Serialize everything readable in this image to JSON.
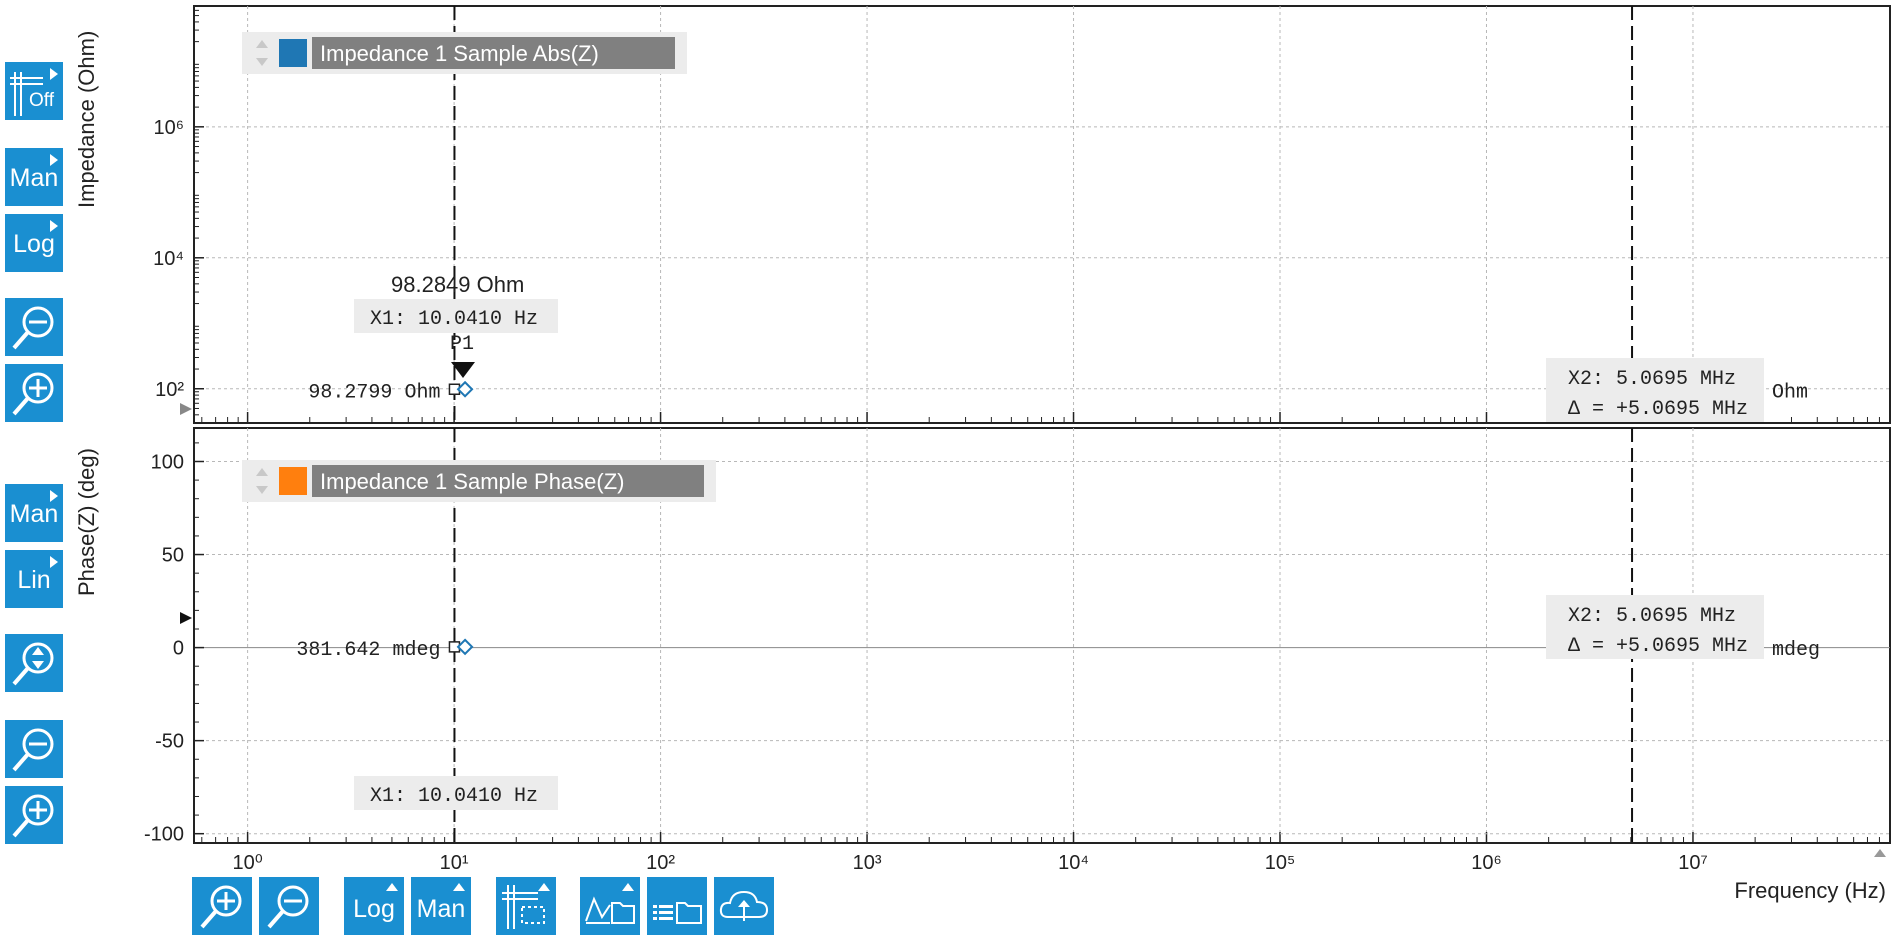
{
  "chart_data": [
    {
      "type": "line",
      "title": "",
      "ylabel": "Impedance (Ohm)",
      "yscale": "log",
      "ylim": [
        30,
        70000000
      ],
      "yticks": [
        {
          "v": 100,
          "label": "10²"
        },
        {
          "v": 10000,
          "label": "10⁴"
        },
        {
          "v": 1000000,
          "label": "10⁶"
        }
      ],
      "legend": {
        "name": "Impedance 1 Sample Abs(Z)",
        "color": "#1f77b4",
        "placement": "top-left"
      },
      "series": [
        {
          "name": "Impedance 1 Sample Abs(Z)",
          "x": [
            10.041,
            11.3
          ],
          "y": [
            98.2799,
            98.2849
          ]
        }
      ],
      "cursor_readout_left": "98.2799 Ohm",
      "cursor_readout_right": "Ohm",
      "marker_value": "98.2849 Ohm",
      "marker_name": "P1",
      "x1_label": "X1: 10.0410 Hz",
      "x2_label": "X2: 5.0695 MHz",
      "delta_label": "Δ = +5.0695 MHz"
    },
    {
      "type": "line",
      "title": "",
      "ylabel": "Phase(Z) (deg)",
      "yscale": "linear",
      "ylim": [
        -105,
        118
      ],
      "yticks": [
        {
          "v": 100,
          "label": "100"
        },
        {
          "v": 50,
          "label": "50"
        },
        {
          "v": 0,
          "label": "0"
        },
        {
          "v": -50,
          "label": "-50"
        },
        {
          "v": -100,
          "label": "-100"
        }
      ],
      "legend": {
        "name": "Impedance 1 Sample Phase(Z)",
        "color": "#ff7f0e",
        "placement": "top-left"
      },
      "series": [
        {
          "name": "Impedance 1 Sample Phase(Z)",
          "x": [
            10.041,
            11.3
          ],
          "y": [
            0.381642,
            0.381642
          ]
        }
      ],
      "cursor_readout_left": "381.642 mdeg",
      "cursor_readout_right": "mdeg",
      "x1_label": "X1: 10.0410 Hz",
      "x2_label": "X2: 5.0695 MHz",
      "delta_label": "Δ = +5.0695 MHz"
    }
  ],
  "x_axis": {
    "label": "Frequency (Hz)",
    "scale": "log",
    "xlim": [
      0.55,
      90000000
    ],
    "ticks": [
      {
        "v": 1,
        "label": "10⁰"
      },
      {
        "v": 10,
        "label": "10¹"
      },
      {
        "v": 100,
        "label": "10²"
      },
      {
        "v": 1000,
        "label": "10³"
      },
      {
        "v": 10000,
        "label": "10⁴"
      },
      {
        "v": 100000,
        "label": "10⁵"
      },
      {
        "v": 1000000,
        "label": "10⁶"
      },
      {
        "v": 10000000,
        "label": "10⁷"
      }
    ],
    "cursor_x1": 10.041,
    "cursor_x2": 5069500
  },
  "left_toolbar": {
    "grid_off": "Off",
    "top_range": "Man",
    "top_scale": "Log",
    "bottom_range": "Man",
    "bottom_scale": "Lin"
  },
  "bottom_toolbar": {
    "scale": "Log",
    "range": "Man"
  },
  "colors": {
    "button": "#1a8fd1",
    "abs": "#1f77b4",
    "phase": "#ff7f0e"
  }
}
